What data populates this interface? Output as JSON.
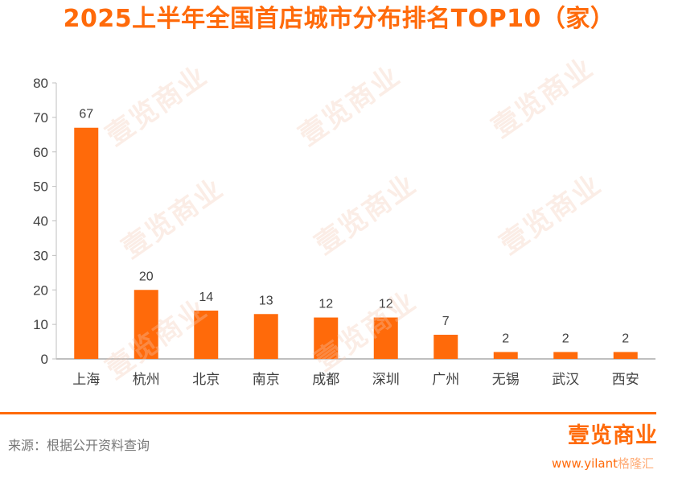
{
  "header": {
    "title": "2025上半年全国首店城市分布排名TOP10（家）"
  },
  "colors": {
    "accent": "#ff6a0a",
    "axis": "#bfbfbf",
    "text": "#404040"
  },
  "chart_data": {
    "type": "bar",
    "title": "2025上半年全国首店城市分布排名TOP10（家）",
    "categories": [
      "上海",
      "杭州",
      "北京",
      "南京",
      "成都",
      "深圳",
      "广州",
      "无锡",
      "武汉",
      "西安"
    ],
    "values": [
      67,
      20,
      14,
      13,
      12,
      12,
      7,
      2,
      2,
      2
    ],
    "ylim": [
      0,
      80
    ],
    "yticks": [
      0,
      10,
      20,
      30,
      40,
      50,
      60,
      70,
      80
    ],
    "grid": false,
    "legend": "none",
    "data_labels": true
  },
  "footer": {
    "source": "来源：根据公开资料查询",
    "brand": "壹览商业",
    "url": "www.yilant",
    "gelonghui": "格隆汇"
  },
  "watermark": "壹览商业"
}
